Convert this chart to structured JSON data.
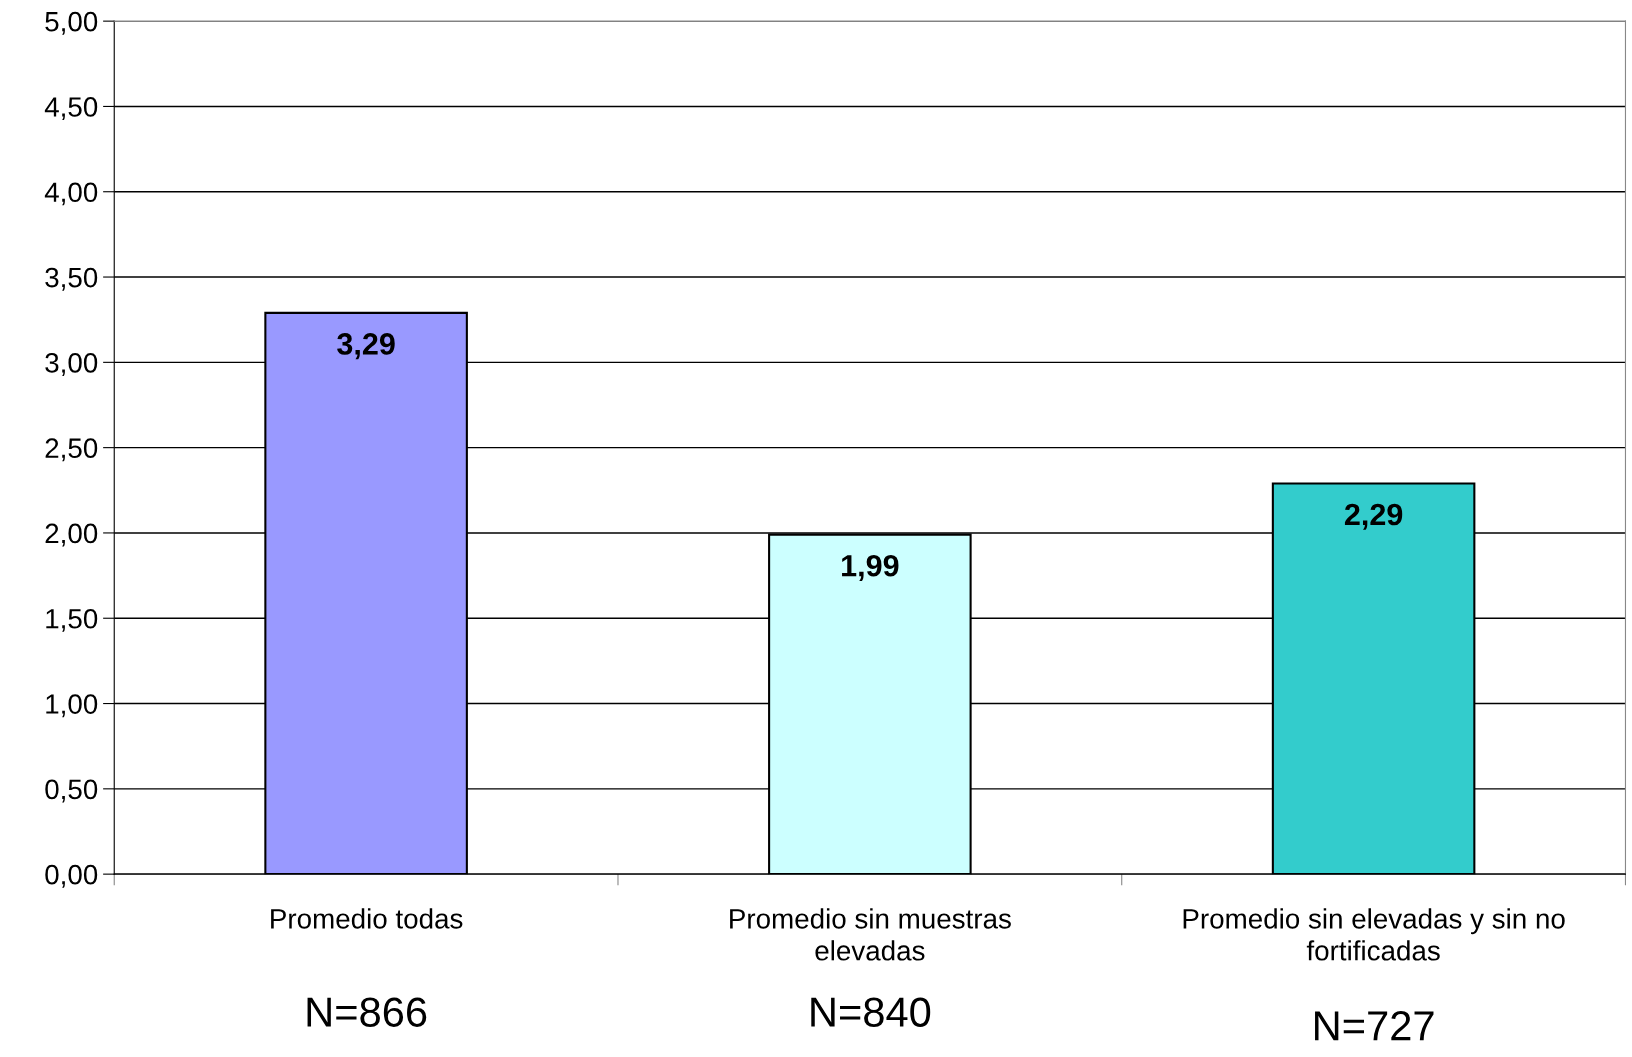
{
  "chart_data": {
    "type": "bar",
    "categories": [
      "Promedio todas",
      "Promedio sin muestras\nelevadas",
      "Promedio sin elevadas y sin no\nfortificadas"
    ],
    "values": [
      3.29,
      1.99,
      2.29
    ],
    "colors": [
      "#9999ff",
      "#ccffff",
      "#33cccc"
    ],
    "value_labels": [
      "3,29",
      "1,99",
      "2,29"
    ],
    "ylim": [
      0,
      5
    ],
    "yticks": [
      {
        "value": 0,
        "label": "0,00"
      },
      {
        "value": 0.5,
        "label": "0,50"
      },
      {
        "value": 1,
        "label": "1,00"
      },
      {
        "value": 1.5,
        "label": "1,50"
      },
      {
        "value": 2,
        "label": "2,00"
      },
      {
        "value": 2.5,
        "label": "2,50"
      },
      {
        "value": 3,
        "label": "3,00"
      },
      {
        "value": 3.5,
        "label": "3,50"
      },
      {
        "value": 4,
        "label": "4,00"
      },
      {
        "value": 4.5,
        "label": "4,50"
      },
      {
        "value": 5,
        "label": "5,00"
      }
    ],
    "grid": "y",
    "legend": false,
    "annotations": [
      "N=866",
      "N=840",
      "N=727"
    ]
  }
}
